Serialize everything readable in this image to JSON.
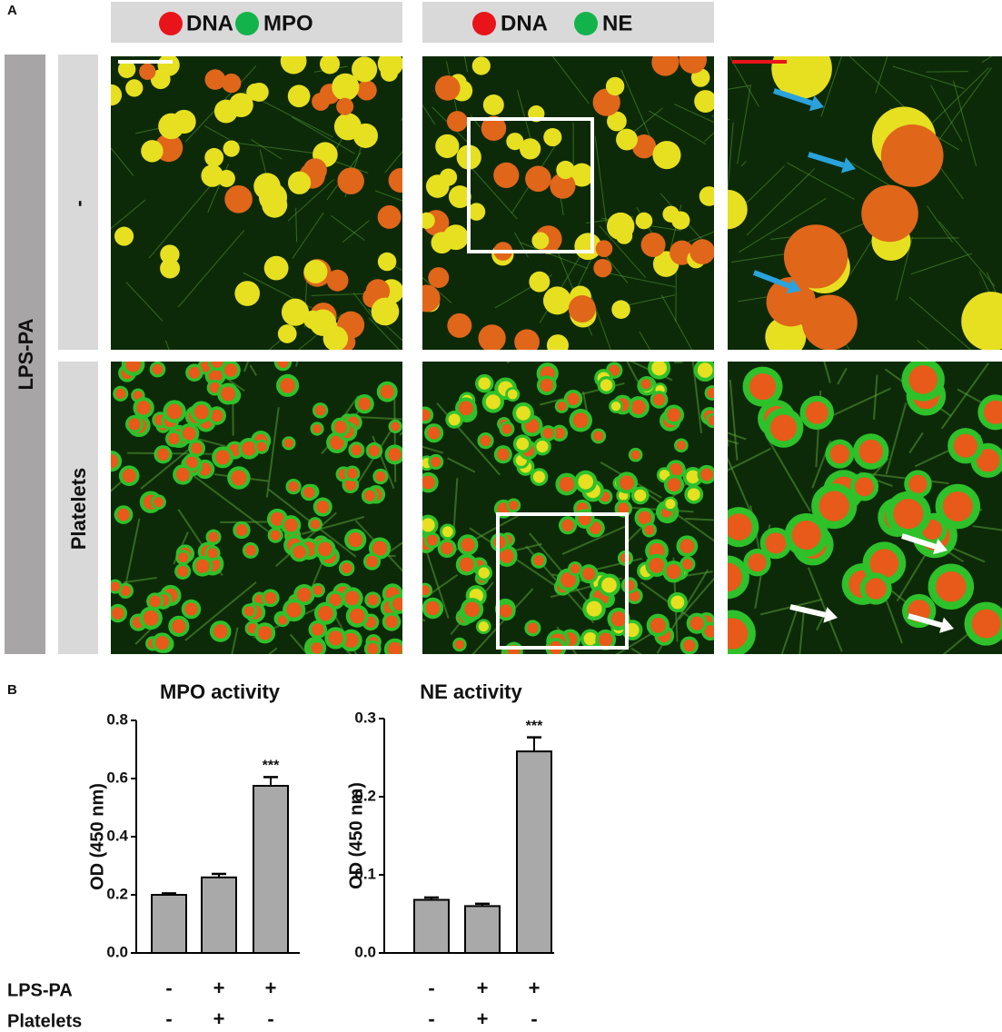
{
  "panel_a": {
    "label": "A",
    "headers": [
      {
        "items": [
          "DNA",
          "MPO"
        ]
      },
      {
        "items": [
          "DNA",
          "NE"
        ]
      }
    ],
    "group_label": "LPS-PA",
    "row_labels": [
      "-",
      "Platelets"
    ]
  },
  "panel_b": {
    "label": "B",
    "condition_rows": [
      "LPS-PA",
      "Platelets"
    ]
  },
  "chart_data": [
    {
      "type": "bar",
      "title": "MPO activity",
      "ylabel": "OD (450 nm)",
      "values": [
        0.2,
        0.26,
        0.575
      ],
      "errors": [
        0.005,
        0.012,
        0.03
      ],
      "annotations": [
        null,
        null,
        "***"
      ],
      "conditions": [
        [
          "-",
          "+",
          "+"
        ],
        [
          "-",
          "+",
          "-"
        ]
      ],
      "color": "#a9a9a9",
      "ylim": [
        0,
        0.8
      ],
      "yticks": [
        {
          "value": 0,
          "label": "0.0"
        },
        0.2,
        0.4,
        0.6,
        0.8
      ]
    },
    {
      "type": "bar",
      "title": "NE activity",
      "ylabel": "OD (450 nm)",
      "values": [
        0.068,
        0.06,
        0.258
      ],
      "errors": [
        0.003,
        0.003,
        0.018
      ],
      "annotations": [
        null,
        null,
        "***"
      ],
      "conditions": [
        [
          "-",
          "+",
          "+"
        ],
        [
          "-",
          "+",
          "-"
        ]
      ],
      "color": "#a9a9a9",
      "ylim": [
        0,
        0.3
      ],
      "yticks": [
        {
          "value": 0,
          "label": "0.0"
        },
        0.1,
        0.2,
        0.3
      ]
    }
  ]
}
